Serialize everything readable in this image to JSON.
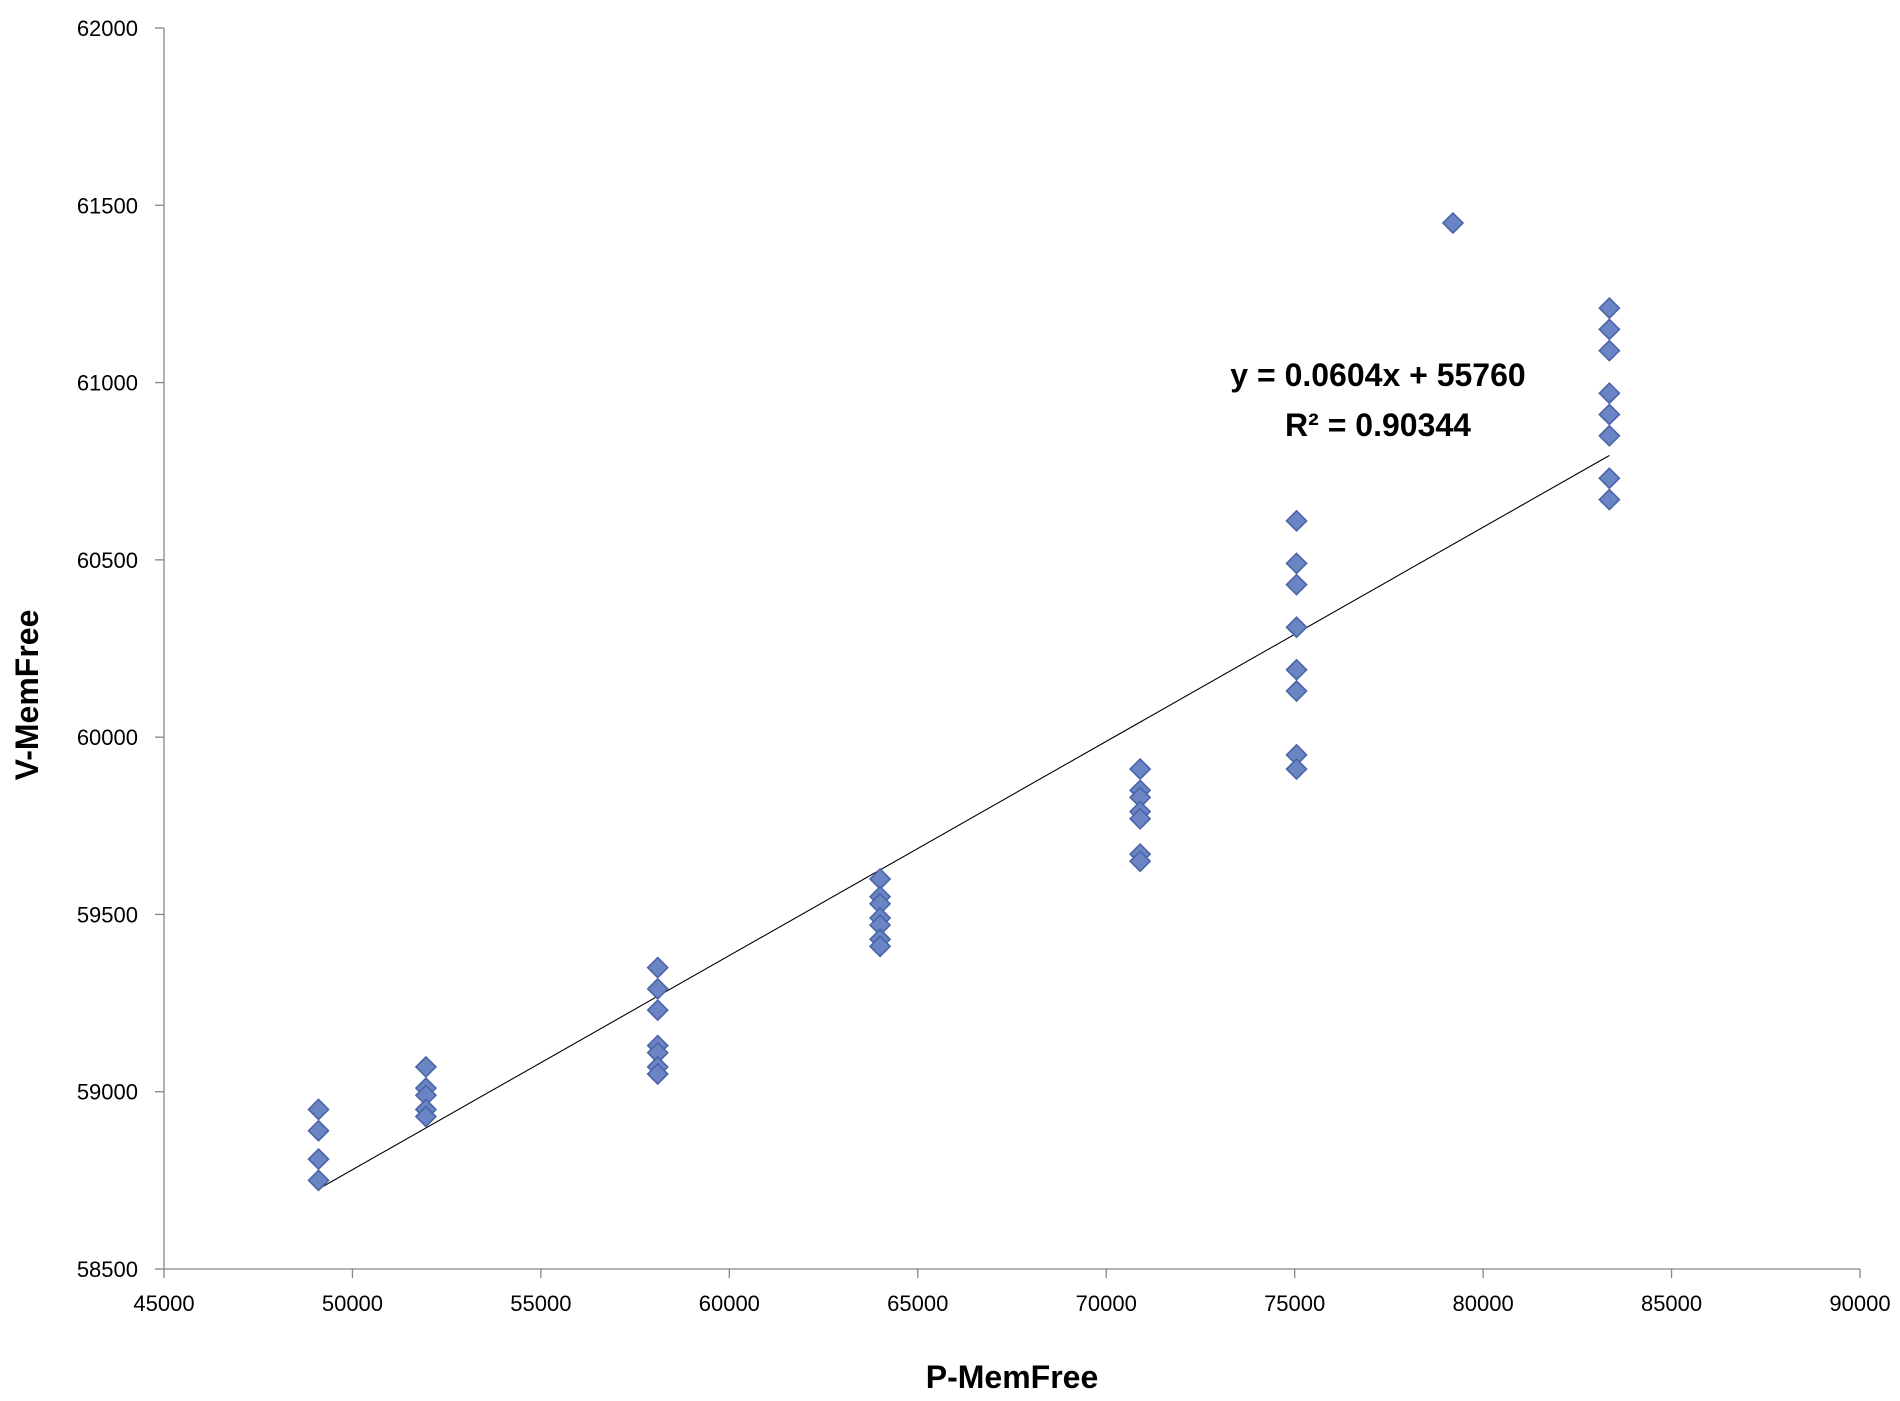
{
  "chart_data": {
    "type": "scatter",
    "xlabel": "P-MemFree",
    "ylabel": "V-MemFree",
    "xlim": [
      45000,
      90000
    ],
    "ylim": [
      58500,
      62000
    ],
    "xticks": [
      "45000",
      "50000",
      "55000",
      "60000",
      "65000",
      "70000",
      "75000",
      "80000",
      "85000",
      "90000"
    ],
    "yticks": [
      "58500",
      "59000",
      "59500",
      "60000",
      "60500",
      "61000",
      "61500",
      "62000"
    ],
    "grid": false,
    "legend": "none",
    "marker": "diamond",
    "marker_fill": "#6a84c4",
    "marker_edge": "#4a64a8",
    "points": [
      {
        "x": 49100,
        "y": 58950
      },
      {
        "x": 49100,
        "y": 58890
      },
      {
        "x": 49100,
        "y": 58810
      },
      {
        "x": 49100,
        "y": 58750
      },
      {
        "x": 51950,
        "y": 59070
      },
      {
        "x": 51950,
        "y": 59010
      },
      {
        "x": 51950,
        "y": 58990
      },
      {
        "x": 51950,
        "y": 58950
      },
      {
        "x": 51950,
        "y": 58930
      },
      {
        "x": 58100,
        "y": 59350
      },
      {
        "x": 58100,
        "y": 59290
      },
      {
        "x": 58100,
        "y": 59230
      },
      {
        "x": 58100,
        "y": 59130
      },
      {
        "x": 58100,
        "y": 59110
      },
      {
        "x": 58100,
        "y": 59070
      },
      {
        "x": 58100,
        "y": 59050
      },
      {
        "x": 64000,
        "y": 59600
      },
      {
        "x": 64000,
        "y": 59550
      },
      {
        "x": 64000,
        "y": 59530
      },
      {
        "x": 64000,
        "y": 59490
      },
      {
        "x": 64000,
        "y": 59470
      },
      {
        "x": 64000,
        "y": 59430
      },
      {
        "x": 64000,
        "y": 59410
      },
      {
        "x": 70900,
        "y": 59910
      },
      {
        "x": 70900,
        "y": 59850
      },
      {
        "x": 70900,
        "y": 59830
      },
      {
        "x": 70900,
        "y": 59790
      },
      {
        "x": 70900,
        "y": 59770
      },
      {
        "x": 70900,
        "y": 59670
      },
      {
        "x": 70900,
        "y": 59650
      },
      {
        "x": 75050,
        "y": 60610
      },
      {
        "x": 75050,
        "y": 60490
      },
      {
        "x": 75050,
        "y": 60430
      },
      {
        "x": 75050,
        "y": 60310
      },
      {
        "x": 75050,
        "y": 60190
      },
      {
        "x": 75050,
        "y": 60130
      },
      {
        "x": 75050,
        "y": 59950
      },
      {
        "x": 75050,
        "y": 59910
      },
      {
        "x": 79200,
        "y": 61450
      },
      {
        "x": 83350,
        "y": 61210
      },
      {
        "x": 83350,
        "y": 61150
      },
      {
        "x": 83350,
        "y": 61090
      },
      {
        "x": 83350,
        "y": 60970
      },
      {
        "x": 83350,
        "y": 60910
      },
      {
        "x": 83350,
        "y": 60850
      },
      {
        "x": 83350,
        "y": 60730
      },
      {
        "x": 83350,
        "y": 60670
      }
    ],
    "trendline": {
      "type": "linear",
      "slope": 0.0604,
      "intercept": 55760,
      "x_start": 49100,
      "x_end": 83350,
      "equation_label": "y = 0.0604x + 55760",
      "r2_label": "R² = 0.90344"
    }
  }
}
